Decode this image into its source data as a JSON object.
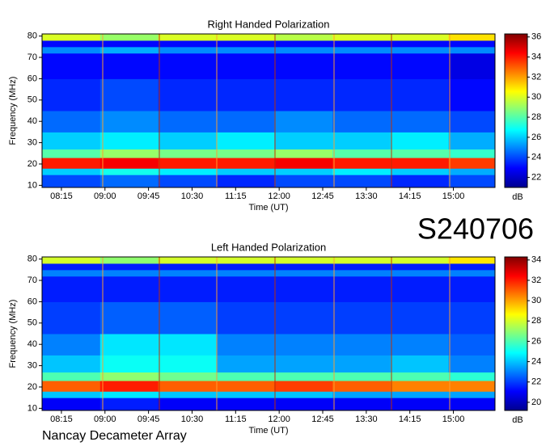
{
  "chart_data": [
    {
      "type": "heatmap",
      "title": "Right Handed Polarization",
      "xlabel": "Time (UT)",
      "ylabel": "Frequency (MHz)",
      "xlim": [
        475,
        943
      ],
      "ylim": [
        9,
        81
      ],
      "xticks": [
        {
          "value": 495,
          "label": "08:15"
        },
        {
          "value": 540,
          "label": "09:00"
        },
        {
          "value": 585,
          "label": "09:45"
        },
        {
          "value": 630,
          "label": "10:30"
        },
        {
          "value": 675,
          "label": "11:15"
        },
        {
          "value": 720,
          "label": "12:00"
        },
        {
          "value": 765,
          "label": "12:45"
        },
        {
          "value": 810,
          "label": "13:30"
        },
        {
          "value": 855,
          "label": "14:15"
        },
        {
          "value": 900,
          "label": "15:00"
        }
      ],
      "yticks": [
        10,
        20,
        30,
        40,
        50,
        60,
        70,
        80
      ],
      "x_bins": [
        475,
        535,
        595,
        655,
        715,
        775,
        835,
        895,
        943
      ],
      "y_bins": [
        9,
        15,
        18,
        23,
        27,
        35,
        45,
        60,
        72,
        75,
        78,
        81
      ],
      "values": [
        [
          24,
          24.5,
          24,
          23.5,
          24,
          24,
          23.5,
          24
        ],
        [
          26,
          27,
          26.5,
          26,
          26,
          26.5,
          26,
          25.5
        ],
        [
          34,
          34.5,
          34,
          34,
          34.5,
          34,
          34,
          33.5
        ],
        [
          28,
          29,
          28.5,
          28.5,
          29,
          28,
          28,
          27.5
        ],
        [
          26,
          26.5,
          26,
          26.5,
          26,
          26,
          26.5,
          25.5
        ],
        [
          24.5,
          25,
          24.5,
          24.5,
          25,
          24.5,
          24.5,
          24
        ],
        [
          23.5,
          24,
          23.5,
          23.5,
          23.5,
          23.5,
          23.5,
          23
        ],
        [
          23,
          23,
          23,
          23,
          23,
          23,
          23,
          22.5
        ],
        [
          25,
          25.5,
          25,
          25,
          25,
          25,
          25,
          25
        ],
        [
          23,
          23,
          23,
          23,
          23,
          23,
          23,
          23
        ],
        [
          30,
          29,
          30,
          30,
          29.5,
          30,
          30,
          31
        ]
      ],
      "clim": [
        21,
        36.3
      ],
      "cticks": [
        22,
        24,
        26,
        28,
        30,
        32,
        34,
        36
      ],
      "clabel": "dB",
      "colormap": "jet"
    },
    {
      "type": "heatmap",
      "title": "Left Handed Polarization",
      "xlabel": "Time (UT)",
      "ylabel": "Frequency (MHz)",
      "xlim": [
        475,
        943
      ],
      "ylim": [
        9,
        81
      ],
      "xticks": [
        {
          "value": 495,
          "label": "08:15"
        },
        {
          "value": 540,
          "label": "09:00"
        },
        {
          "value": 585,
          "label": "09:45"
        },
        {
          "value": 630,
          "label": "10:30"
        },
        {
          "value": 675,
          "label": "11:15"
        },
        {
          "value": 720,
          "label": "12:00"
        },
        {
          "value": 765,
          "label": "12:45"
        },
        {
          "value": 810,
          "label": "13:30"
        },
        {
          "value": 855,
          "label": "14:15"
        },
        {
          "value": 900,
          "label": "15:00"
        }
      ],
      "yticks": [
        10,
        20,
        30,
        40,
        50,
        60,
        70,
        80
      ],
      "x_bins": [
        475,
        535,
        595,
        655,
        715,
        775,
        835,
        895,
        943
      ],
      "y_bins": [
        9,
        15,
        18,
        23,
        27,
        35,
        45,
        60,
        72,
        75,
        78,
        81
      ],
      "values": [
        [
          21,
          21.5,
          21,
          21,
          21,
          21,
          21,
          21
        ],
        [
          24,
          24.5,
          24,
          24,
          24,
          23.5,
          23.5,
          23.5
        ],
        [
          31,
          32,
          31,
          31,
          31.5,
          31,
          30.5,
          30.5
        ],
        [
          26,
          27,
          26.5,
          26,
          26,
          26,
          26,
          25.5
        ],
        [
          24,
          25,
          25,
          23.5,
          23.5,
          23.5,
          24,
          23
        ],
        [
          23,
          24.5,
          24.5,
          23,
          23,
          23,
          23,
          22.5
        ],
        [
          22,
          22.5,
          22.5,
          22,
          22,
          22,
          22,
          22
        ],
        [
          21.5,
          21.5,
          21.5,
          21.5,
          21.5,
          21.5,
          21.5,
          21.5
        ],
        [
          23,
          23,
          23,
          23,
          23,
          23,
          23,
          23
        ],
        [
          21.5,
          21.5,
          21.5,
          21.5,
          21.5,
          21.5,
          21.5,
          21.5
        ],
        [
          28,
          27,
          28,
          28,
          28,
          28,
          28,
          29
        ]
      ],
      "clim": [
        19.2,
        34.3
      ],
      "cticks": [
        20,
        22,
        24,
        26,
        28,
        30,
        32,
        34
      ],
      "clabel": "dB",
      "colormap": "jet"
    }
  ],
  "event_id": "S240706",
  "footer": "Nancay Decameter Array"
}
